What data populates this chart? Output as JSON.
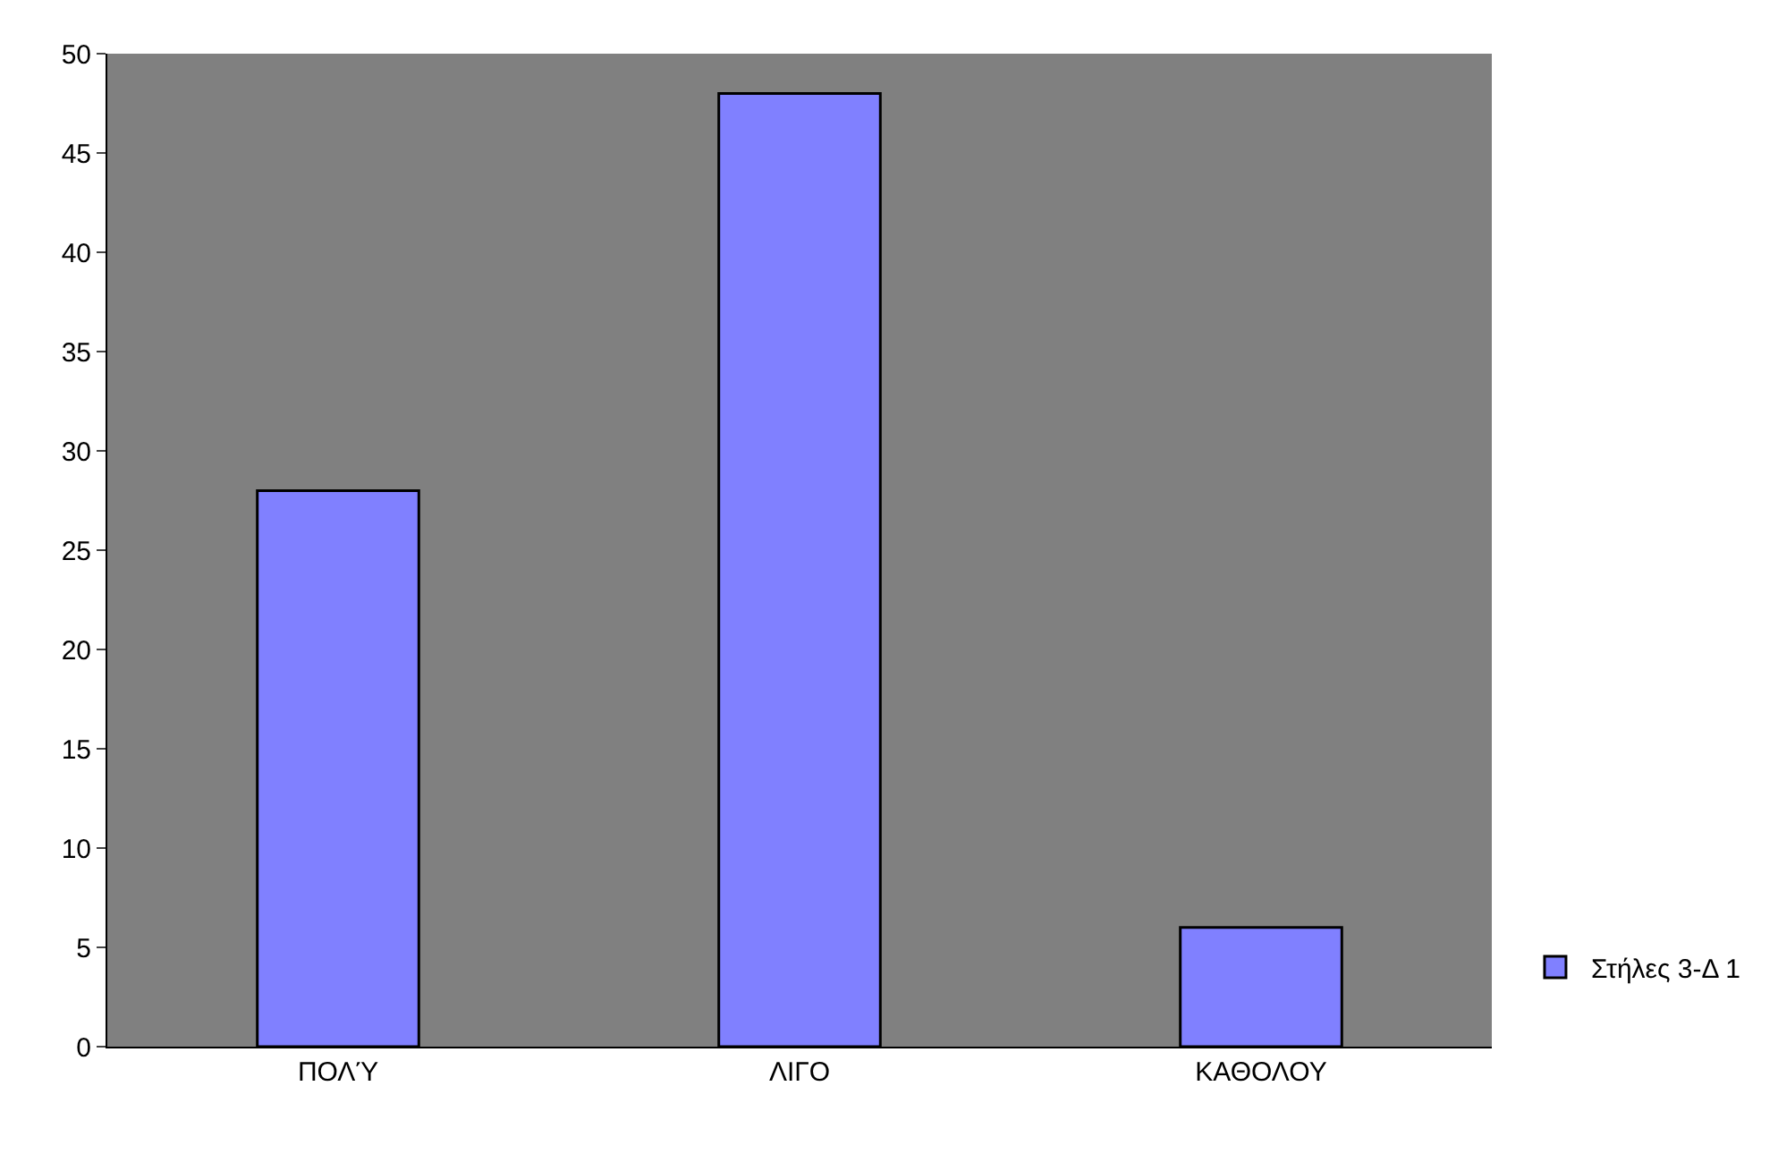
{
  "chart_data": {
    "type": "bar",
    "categories": [
      "ΠΟΛΎ",
      "ΛΙΓΟ",
      "ΚΑΘΟΛΟΥ"
    ],
    "series": [
      {
        "name": "Στήλες 3-Δ 1",
        "color": "#8080ff",
        "values": [
          28,
          48,
          6
        ]
      }
    ],
    "ylim": [
      0,
      50
    ],
    "yticks": [
      0,
      5,
      10,
      15,
      20,
      25,
      30,
      35,
      40,
      45,
      50
    ],
    "grid": false,
    "legend": "right"
  }
}
